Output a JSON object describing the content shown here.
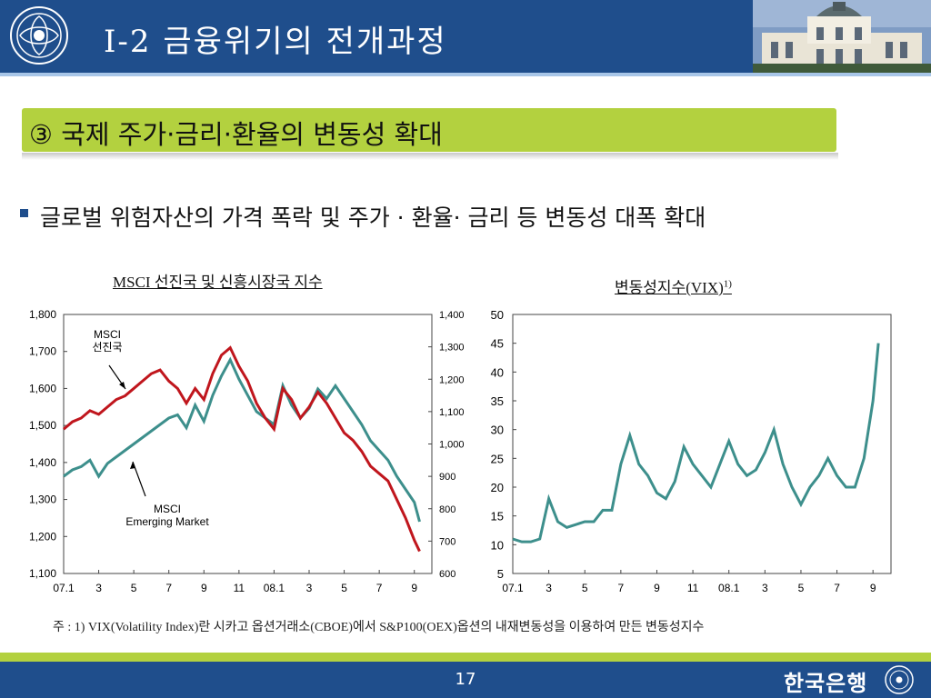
{
  "header": {
    "title": "I-2 금융위기의 전개과정"
  },
  "section": {
    "heading": "③ 국제 주가·금리·환율의 변동성 확대"
  },
  "bullet": {
    "text": "글로벌 위험자산의 가격 폭락 및 주가 · 환율· 금리 등 변동성 대폭 확대"
  },
  "colors": {
    "header": "#1f4e8c",
    "accent_green": "#b3d13f",
    "msci_world": "#c0161d",
    "msci_em": "#3d8f8c",
    "vix": "#3d8f8c"
  },
  "chart_data": [
    {
      "type": "line",
      "title": "MSCI 선진국 및 신흥시장국 지수",
      "x_ticks": [
        "07.1",
        "3",
        "5",
        "7",
        "9",
        "11",
        "08.1",
        "3",
        "5",
        "7",
        "9"
      ],
      "y_left": {
        "range": [
          1100,
          1800
        ],
        "ticks": [
          "1,800",
          "1,700",
          "1,600",
          "1,500",
          "1,400",
          "1,300",
          "1,200",
          "1,100"
        ]
      },
      "y_right": {
        "range": [
          600,
          1400
        ],
        "ticks": [
          "1,400",
          "1,300",
          "1,200",
          "1,100",
          "1,000",
          "900",
          "800",
          "700",
          "600"
        ]
      },
      "annotations": {
        "world": [
          "MSCI",
          "선진국"
        ],
        "em": [
          "MSCI",
          "Emerging Market"
        ]
      },
      "grid": false,
      "series": [
        {
          "name": "MSCI 선진국",
          "axis": "left",
          "x": [
            0,
            0.5,
            1,
            1.5,
            2,
            2.5,
            3,
            3.5,
            4,
            4.5,
            5,
            5.5,
            6,
            6.5,
            7,
            7.5,
            8,
            8.5,
            9,
            9.5,
            10,
            10.5,
            11,
            11.5,
            12,
            12.5,
            13,
            13.5,
            14,
            14.5,
            15,
            15.5,
            16,
            16.5,
            17,
            17.5,
            18,
            18.5,
            19,
            19.5,
            20,
            20.3
          ],
          "y": [
            1490,
            1510,
            1520,
            1540,
            1530,
            1550,
            1570,
            1580,
            1600,
            1620,
            1640,
            1650,
            1620,
            1600,
            1560,
            1600,
            1570,
            1640,
            1690,
            1710,
            1660,
            1620,
            1560,
            1520,
            1490,
            1600,
            1570,
            1520,
            1550,
            1590,
            1560,
            1520,
            1480,
            1460,
            1430,
            1390,
            1370,
            1350,
            1300,
            1250,
            1190,
            1160
          ]
        },
        {
          "name": "MSCI Emerging Market",
          "axis": "right",
          "x": [
            0,
            0.5,
            1,
            1.5,
            2,
            2.5,
            3,
            3.5,
            4,
            4.5,
            5,
            5.5,
            6,
            6.5,
            7,
            7.5,
            8,
            8.5,
            9,
            9.5,
            10,
            10.5,
            11,
            11.5,
            12,
            12.5,
            13,
            13.5,
            14,
            14.5,
            15,
            15.5,
            16,
            16.5,
            17,
            17.5,
            18,
            18.5,
            19,
            19.5,
            20,
            20.3
          ],
          "y": [
            900,
            920,
            930,
            950,
            900,
            940,
            960,
            980,
            1000,
            1020,
            1040,
            1060,
            1080,
            1090,
            1050,
            1120,
            1070,
            1150,
            1210,
            1260,
            1200,
            1150,
            1100,
            1080,
            1060,
            1180,
            1120,
            1080,
            1110,
            1170,
            1140,
            1180,
            1140,
            1100,
            1060,
            1010,
            980,
            950,
            900,
            860,
            820,
            760
          ]
        }
      ]
    },
    {
      "type": "line",
      "title": "변동성지수(VIX)",
      "title_sup": "1)",
      "x_ticks": [
        "07.1",
        "3",
        "5",
        "7",
        "9",
        "11",
        "08.1",
        "3",
        "5",
        "7",
        "9"
      ],
      "y": {
        "range": [
          5,
          50
        ],
        "ticks": [
          "50",
          "45",
          "40",
          "35",
          "30",
          "25",
          "20",
          "15",
          "10",
          "5"
        ]
      },
      "grid": false,
      "series": [
        {
          "name": "VIX",
          "x": [
            0,
            0.5,
            1,
            1.5,
            2,
            2.5,
            3,
            3.5,
            4,
            4.5,
            5,
            5.5,
            6,
            6.5,
            7,
            7.5,
            8,
            8.5,
            9,
            9.5,
            10,
            10.5,
            11,
            11.5,
            12,
            12.5,
            13,
            13.5,
            14,
            14.5,
            15,
            15.5,
            16,
            16.5,
            17,
            17.5,
            18,
            18.5,
            19,
            19.5,
            20,
            20.3
          ],
          "y": [
            11,
            10.5,
            10.5,
            11,
            18,
            14,
            13,
            13.5,
            14,
            14,
            16,
            16,
            24,
            29,
            24,
            22,
            19,
            18,
            21,
            27,
            24,
            22,
            20,
            24,
            28,
            24,
            22,
            23,
            26,
            30,
            24,
            20,
            17,
            20,
            22,
            25,
            22,
            20,
            20,
            25,
            35,
            45
          ]
        }
      ]
    }
  ],
  "note": "주 : 1) VIX(Volatility Index)란 시카고 옵션거래소(CBOE)에서 S&P100(OEX)옵션의 내재변동성을 이용하여 만든 변동성지수",
  "footer": {
    "page": "17",
    "bank": "한국은행"
  }
}
